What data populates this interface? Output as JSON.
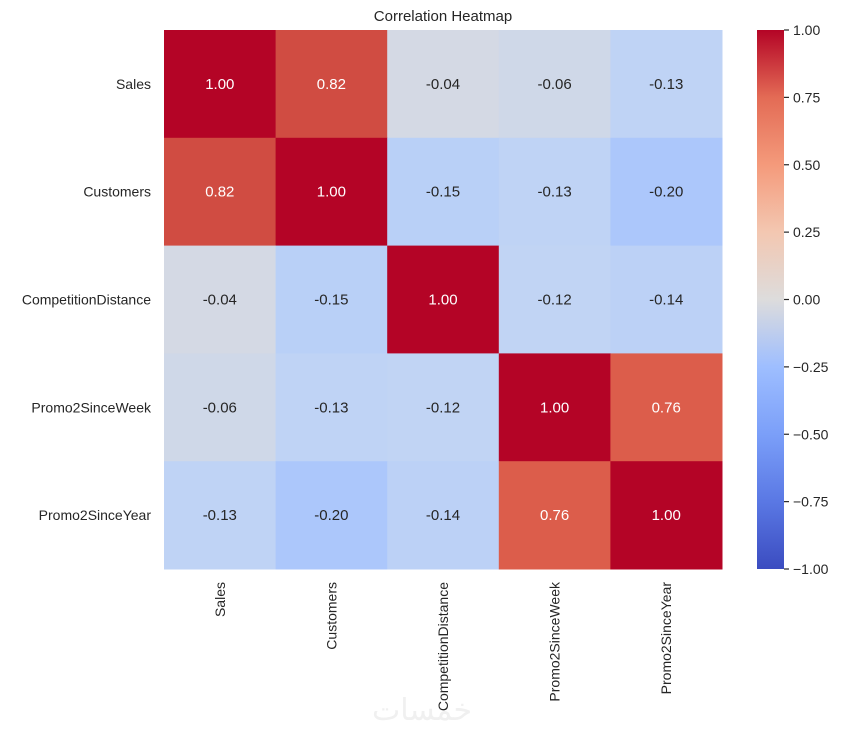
{
  "chart_data": {
    "type": "heatmap",
    "title": "Correlation Heatmap",
    "xlabel": "",
    "ylabel": "",
    "x_categories": [
      "Sales",
      "Customers",
      "CompetitionDistance",
      "Promo2SinceWeek",
      "Promo2SinceYear"
    ],
    "y_categories": [
      "Sales",
      "Customers",
      "CompetitionDistance",
      "Promo2SinceWeek",
      "Promo2SinceYear"
    ],
    "values": [
      [
        1.0,
        0.82,
        -0.04,
        -0.06,
        -0.13
      ],
      [
        0.82,
        1.0,
        -0.15,
        -0.13,
        -0.2
      ],
      [
        -0.04,
        -0.15,
        1.0,
        -0.12,
        -0.14
      ],
      [
        -0.06,
        -0.13,
        -0.12,
        1.0,
        0.76
      ],
      [
        -0.13,
        -0.2,
        -0.14,
        0.76,
        1.0
      ]
    ],
    "annotation_format": "0.00",
    "colormap": "coolwarm",
    "vmin": -1.0,
    "vmax": 1.0,
    "colorbar": {
      "placement": "right",
      "ticks": [
        1.0,
        0.75,
        0.5,
        0.25,
        0.0,
        -0.25,
        -0.5,
        -0.75,
        -1.0
      ],
      "tick_labels": [
        "1.00",
        "0.75",
        "0.50",
        "0.25",
        "0.00",
        "−0.25",
        "−0.50",
        "−0.75",
        "−1.00"
      ]
    },
    "grid": false
  },
  "watermark": "خمسات"
}
